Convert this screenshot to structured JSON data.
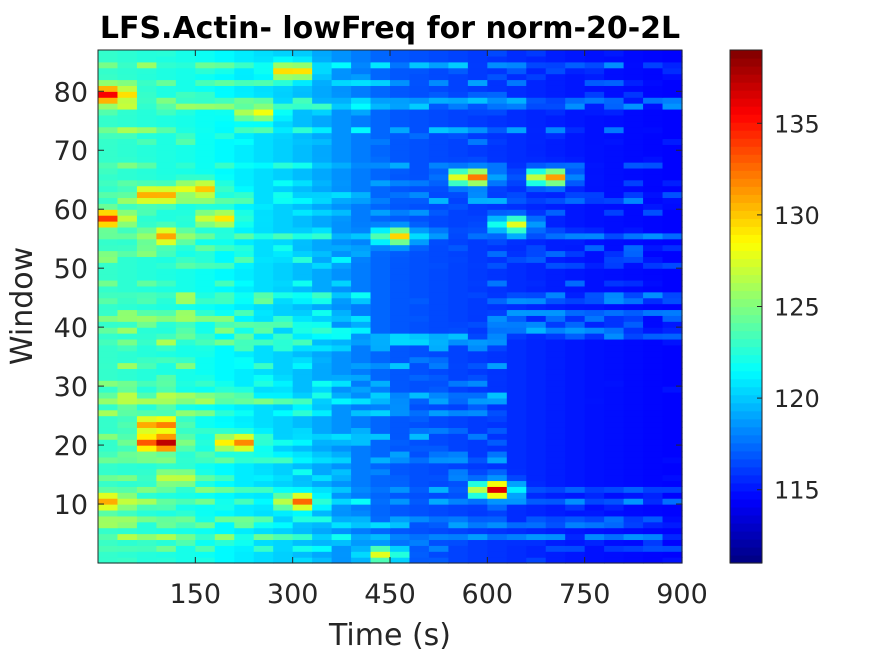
{
  "chart_data": {
    "type": "heatmap",
    "title": "LFS.Actin- lowFreq for norm-20-2L",
    "xlabel": "Time (s)",
    "ylabel": "Window",
    "x_range": [
      0,
      900
    ],
    "y_range": [
      0,
      87
    ],
    "x_ticks": [
      150,
      300,
      450,
      600,
      750,
      900
    ],
    "y_ticks": [
      10,
      20,
      30,
      40,
      50,
      60,
      70,
      80
    ],
    "colormap": "jet",
    "colorbar": {
      "range": [
        111,
        139
      ],
      "ticks": [
        115,
        120,
        125,
        130,
        135
      ]
    },
    "n_time_bins": 30,
    "n_windows": 87,
    "base_profile": [
      {
        "time": 0,
        "value": 123
      },
      {
        "time": 150,
        "value": 122
      },
      {
        "time": 300,
        "value": 120
      },
      {
        "time": 450,
        "value": 117
      },
      {
        "time": 600,
        "value": 116
      },
      {
        "time": 750,
        "value": 115
      },
      {
        "time": 900,
        "value": 114.5
      }
    ],
    "hotspots": [
      {
        "time": 95,
        "window": 21,
        "value": 139
      },
      {
        "time": 92,
        "window": 24,
        "value": 134
      },
      {
        "time": 20,
        "window": 80,
        "value": 136
      },
      {
        "time": 300,
        "window": 84,
        "value": 132
      },
      {
        "time": 575,
        "window": 66,
        "value": 134
      },
      {
        "time": 695,
        "window": 66,
        "value": 133
      },
      {
        "time": 610,
        "window": 13,
        "value": 137
      },
      {
        "time": 310,
        "window": 11,
        "value": 133
      },
      {
        "time": 90,
        "window": 63,
        "value": 133
      },
      {
        "time": 15,
        "window": 59,
        "value": 134
      },
      {
        "time": 215,
        "window": 21,
        "value": 133
      },
      {
        "time": 105,
        "window": 56,
        "value": 131
      },
      {
        "time": 155,
        "window": 64,
        "value": 131
      },
      {
        "time": 460,
        "window": 56,
        "value": 130
      },
      {
        "time": 20,
        "window": 11,
        "value": 131
      },
      {
        "time": 640,
        "window": 58,
        "value": 128
      },
      {
        "time": 440,
        "window": 2,
        "value": 128
      },
      {
        "time": 245,
        "window": 77,
        "value": 129
      },
      {
        "time": 185,
        "window": 59,
        "value": 130
      },
      {
        "time": 120,
        "window": 15,
        "value": 128
      }
    ],
    "cold_regions": [
      {
        "time_from": 620,
        "time_to": 900,
        "window_from": 15,
        "window_to": 38,
        "value": 113
      },
      {
        "time_from": 430,
        "window": 48,
        "time_to": 600,
        "window_from": 40,
        "window_to": 55,
        "value": 115
      }
    ]
  }
}
